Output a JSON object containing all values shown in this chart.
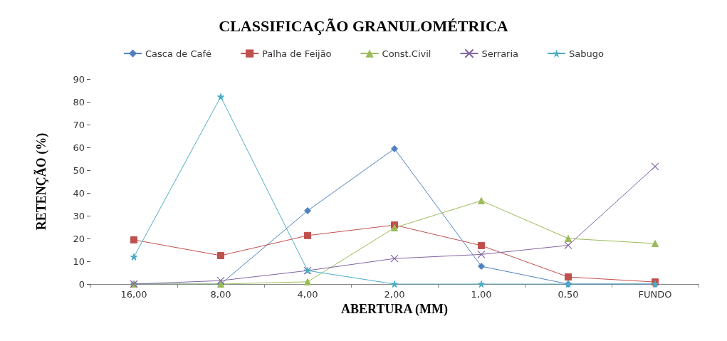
{
  "chart_data": {
    "type": "line",
    "title": "CLASSIFICAÇÃO GRANULOMÉTRICA",
    "xlabel": "ABERTURA (MM)",
    "ylabel": "RETENÇÃO (%)",
    "categories": [
      "16,00",
      "8,00",
      "4,00",
      "2,00",
      "1,00",
      "0,50",
      "FUNDO"
    ],
    "series": [
      {
        "name": "Casca de Café",
        "color": "#4f81bd",
        "marker": "diamond",
        "values": [
          0,
          0,
          32.2,
          59.4,
          7.8,
          0,
          0
        ]
      },
      {
        "name": "Palha de Feijão",
        "color": "#c0504d",
        "marker": "square",
        "values": [
          19.4,
          12.5,
          21.3,
          25.9,
          16.9,
          3.1,
          0.9
        ]
      },
      {
        "name": "Const.Civil",
        "color": "#9bbb59",
        "marker": "triangle",
        "values": [
          0,
          0,
          1,
          24.7,
          36.6,
          20,
          17.8
        ]
      },
      {
        "name": "Serraria",
        "color": "#8064a2",
        "marker": "cross",
        "values": [
          0,
          1.5,
          5.9,
          11.2,
          13,
          17,
          51.6
        ]
      },
      {
        "name": "Sabugo",
        "color": "#4bacc6",
        "marker": "star",
        "values": [
          11.9,
          82.2,
          5.9,
          0,
          0,
          0,
          0
        ]
      }
    ],
    "ylim": [
      0,
      90
    ],
    "yticks": [
      0,
      10,
      20,
      30,
      40,
      50,
      60,
      70,
      80,
      90
    ],
    "grid": false,
    "legend": "top"
  }
}
